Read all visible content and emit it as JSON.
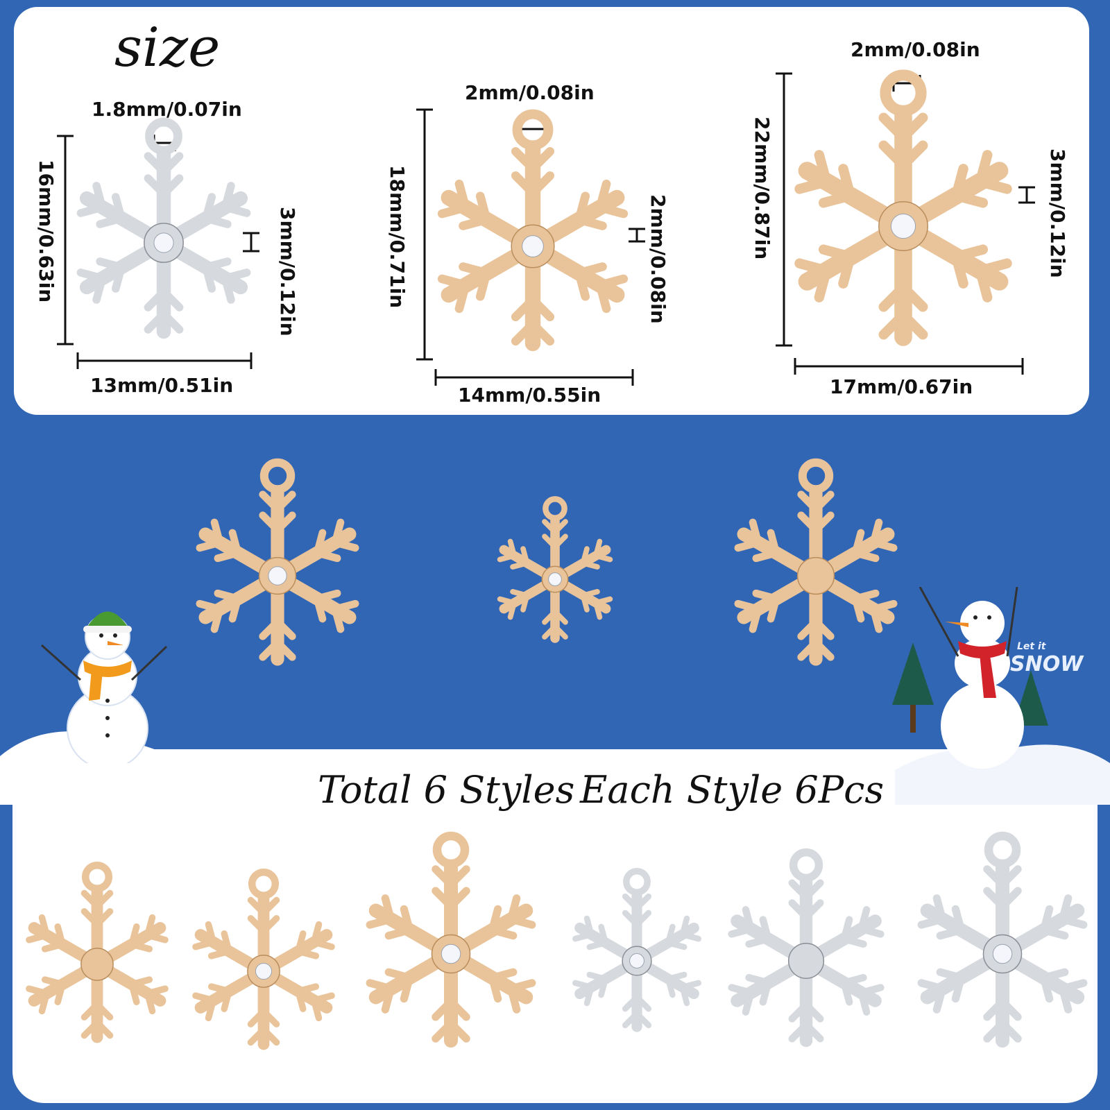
{
  "colors": {
    "background": "#3166b4",
    "panel": "#ffffff",
    "gold": "#e9c49a",
    "gold_dark": "#b98d5c",
    "silver": "#d6d9de",
    "silver_dark": "#8a8f96",
    "crystal": "#f4f6fb"
  },
  "size_section": {
    "title": "size",
    "charm1": {
      "loop_width": "1.8mm/0.07in",
      "height": "16mm/0.63in",
      "arm_width": "3mm/0.12in",
      "width": "13mm/0.51in"
    },
    "charm2": {
      "loop_width": "2mm/0.08in",
      "height": "18mm/0.71in",
      "arm_width": "2mm/0.08in",
      "width": "14mm/0.55in"
    },
    "charm3": {
      "loop_width": "2mm/0.08in",
      "height": "22mm/0.87in",
      "arm_width": "3mm/0.12in",
      "width": "17mm/0.67in"
    }
  },
  "headline": {
    "total": "Total 6 Styles",
    "each": "Each Style 6Pcs"
  },
  "sign_text": {
    "top": "Let it",
    "bottom": "SNOW"
  },
  "icons": [
    "snowflake-charm-icon",
    "snowman-icon",
    "christmas-tree-icon"
  ]
}
